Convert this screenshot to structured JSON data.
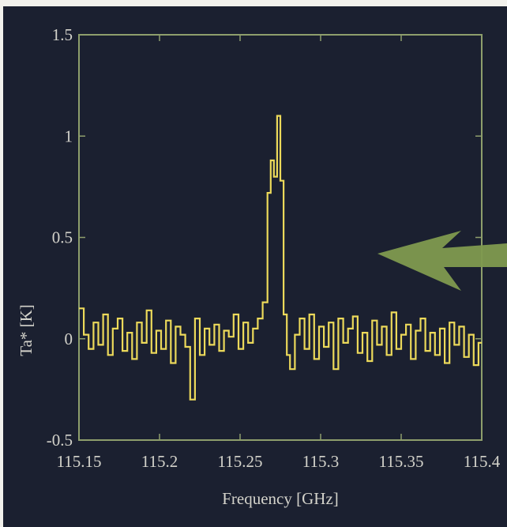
{
  "chart_data": {
    "type": "line",
    "title": "",
    "xlabel": "Frequency [GHz]",
    "ylabel": "Ta* [K]",
    "xlim": [
      115.15,
      115.4
    ],
    "ylim": [
      -0.5,
      1.5
    ],
    "x_ticks": [
      115.15,
      115.2,
      115.25,
      115.3,
      115.35,
      115.4
    ],
    "x_tick_labels": [
      "115.15",
      "115.2",
      "115.25",
      "115.3",
      "115.35",
      "115.4"
    ],
    "y_ticks": [
      -0.5,
      0,
      0.5,
      1,
      1.5
    ],
    "y_tick_labels": [
      "-0.5",
      "0",
      "0.5",
      "1",
      "1.5"
    ],
    "grid": false,
    "style": "step",
    "colors": {
      "background": "#1b2030",
      "frame": "#8e9e6c",
      "series": "#ecd95a",
      "text": "#d4d3cb",
      "arrow": "#7f9a4f"
    },
    "annotations": [
      {
        "type": "arrow",
        "color": "#7f9a4f",
        "direction": "left",
        "points_at_x": 115.27,
        "points_at_y": 0.45
      }
    ],
    "series": [
      {
        "x": [
          115.15,
          115.153,
          115.156,
          115.159,
          115.162,
          115.165,
          115.168,
          115.171,
          115.174,
          115.177,
          115.18,
          115.183,
          115.186,
          115.189,
          115.192,
          115.195,
          115.198,
          115.201,
          115.204,
          115.207,
          115.21,
          115.213,
          115.216,
          115.219,
          115.222,
          115.225,
          115.228,
          115.231,
          115.234,
          115.237,
          115.24,
          115.243,
          115.246,
          115.249,
          115.252,
          115.255,
          115.258,
          115.261,
          115.264,
          115.267,
          115.269,
          115.271,
          115.273,
          115.275,
          115.277,
          115.279,
          115.281,
          115.284,
          115.287,
          115.29,
          115.293,
          115.296,
          115.299,
          115.302,
          115.305,
          115.308,
          115.311,
          115.314,
          115.317,
          115.32,
          115.323,
          115.326,
          115.329,
          115.332,
          115.335,
          115.338,
          115.341,
          115.344,
          115.347,
          115.35,
          115.353,
          115.356,
          115.359,
          115.362,
          115.365,
          115.368,
          115.371,
          115.374,
          115.377,
          115.38,
          115.383,
          115.386,
          115.389,
          115.392,
          115.395,
          115.398
        ],
        "y": [
          0.15,
          0.02,
          -0.05,
          0.08,
          -0.03,
          0.12,
          -0.08,
          0.05,
          0.1,
          -0.06,
          0.03,
          -0.1,
          0.08,
          -0.02,
          0.14,
          -0.07,
          0.04,
          -0.05,
          0.09,
          -0.12,
          0.06,
          0.02,
          -0.04,
          -0.3,
          0.1,
          -0.08,
          0.05,
          -0.03,
          0.07,
          -0.06,
          0.04,
          0.01,
          0.12,
          -0.05,
          0.08,
          -0.02,
          0.05,
          0.1,
          0.18,
          0.72,
          0.88,
          0.8,
          1.1,
          0.78,
          0.12,
          -0.08,
          -0.15,
          0.02,
          0.1,
          -0.05,
          0.12,
          -0.1,
          0.06,
          -0.04,
          0.08,
          -0.15,
          0.1,
          -0.02,
          0.05,
          0.11,
          -0.07,
          0.03,
          -0.11,
          0.09,
          -0.03,
          0.06,
          -0.08,
          0.13,
          -0.05,
          0.02,
          0.07,
          -0.1,
          0.04,
          0.1,
          -0.06,
          0.03,
          -0.08,
          0.05,
          -0.12,
          0.08,
          -0.03,
          0.06,
          -0.09,
          0.02,
          -0.13,
          -0.02
        ]
      }
    ]
  }
}
